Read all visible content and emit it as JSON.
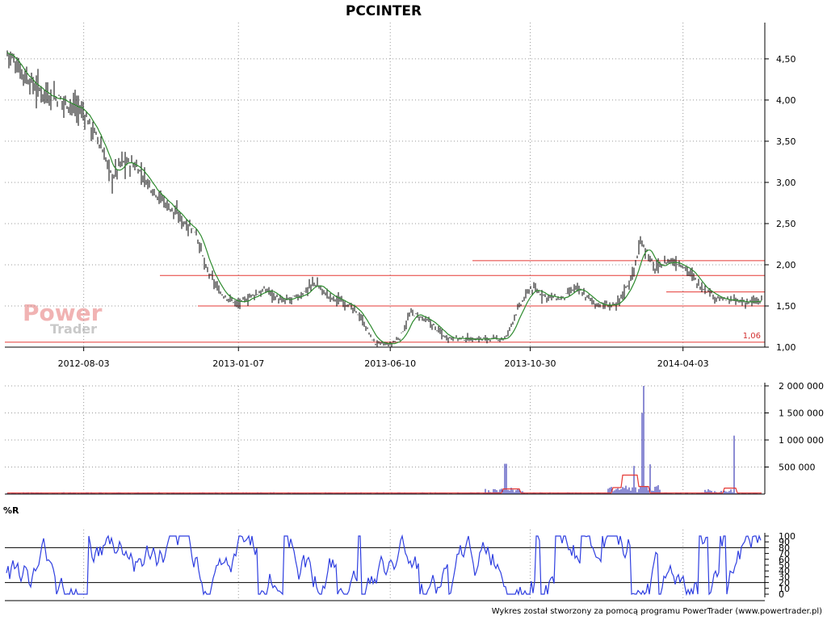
{
  "ticker": "PCCINTER",
  "watermark": {
    "line1": "Power",
    "line2": "Trader"
  },
  "footer": "Wykres został stworzony za pomocą programu PowerTrader (www.powertrader.pl)",
  "chart_data": [
    {
      "type": "line",
      "title": "PCCINTER",
      "series_kind": "ohlc-bars with moving average",
      "x_tick_labels": [
        "2012-08-03",
        "2013-01-07",
        "2013-06-10",
        "2013-10-30",
        "2014-04-03"
      ],
      "y_tick_labels": [
        "1,00",
        "1,50",
        "2,00",
        "2,50",
        "3,00",
        "3,50",
        "4,00",
        "4,50"
      ],
      "ylim": [
        1.0,
        4.95
      ],
      "price_close_approx": [
        [
          "2012-05-15",
          4.62
        ],
        [
          "2012-06-01",
          4.35
        ],
        [
          "2012-06-15",
          4.15
        ],
        [
          "2012-07-01",
          4.05
        ],
        [
          "2012-07-20",
          3.95
        ],
        [
          "2012-08-03",
          3.85
        ],
        [
          "2012-08-20",
          3.45
        ],
        [
          "2012-09-01",
          3.05
        ],
        [
          "2012-09-10",
          3.25
        ],
        [
          "2012-09-25",
          3.2
        ],
        [
          "2012-10-10",
          2.95
        ],
        [
          "2012-10-25",
          2.75
        ],
        [
          "2012-11-10",
          2.55
        ],
        [
          "2012-11-25",
          2.4
        ],
        [
          "2012-12-05",
          1.95
        ],
        [
          "2012-12-20",
          1.65
        ],
        [
          "2013-01-07",
          1.52
        ],
        [
          "2013-01-20",
          1.62
        ],
        [
          "2013-02-05",
          1.7
        ],
        [
          "2013-02-20",
          1.55
        ],
        [
          "2013-03-10",
          1.62
        ],
        [
          "2013-03-25",
          1.78
        ],
        [
          "2013-04-10",
          1.6
        ],
        [
          "2013-04-25",
          1.55
        ],
        [
          "2013-05-10",
          1.38
        ],
        [
          "2013-05-25",
          1.05
        ],
        [
          "2013-06-10",
          1.03
        ],
        [
          "2013-06-20",
          1.12
        ],
        [
          "2013-07-01",
          1.42
        ],
        [
          "2013-07-20",
          1.3
        ],
        [
          "2013-08-05",
          1.12
        ],
        [
          "2013-08-25",
          1.1
        ],
        [
          "2013-09-15",
          1.1
        ],
        [
          "2013-10-05",
          1.1
        ],
        [
          "2013-10-15",
          1.4
        ],
        [
          "2013-10-30",
          1.72
        ],
        [
          "2013-11-15",
          1.62
        ],
        [
          "2013-12-01",
          1.58
        ],
        [
          "2013-12-15",
          1.72
        ],
        [
          "2014-01-05",
          1.52
        ],
        [
          "2014-01-25",
          1.5
        ],
        [
          "2014-02-10",
          1.85
        ],
        [
          "2014-02-20",
          2.3
        ],
        [
          "2014-03-05",
          1.95
        ],
        [
          "2014-03-20",
          2.05
        ],
        [
          "2014-04-03",
          2.0
        ],
        [
          "2014-04-20",
          1.75
        ],
        [
          "2014-05-10",
          1.58
        ],
        [
          "2014-06-01",
          1.55
        ],
        [
          "2014-06-20",
          1.55
        ]
      ],
      "support_resistance_levels": [
        {
          "value": 1.06,
          "label": "1,06"
        },
        {
          "value": 1.5
        },
        {
          "value": 1.87
        },
        {
          "value": 2.05
        },
        {
          "value": 1.67
        }
      ],
      "grid": true
    },
    {
      "type": "bar",
      "title": "volume",
      "y_tick_labels": [
        "500 000",
        "1 000 000",
        "1 500 000",
        "2 000 000"
      ],
      "ylim": [
        0,
        2000000
      ],
      "volume_spikes_approx": [
        [
          "2013-10-05",
          560000
        ],
        [
          "2014-02-12",
          520000
        ],
        [
          "2014-02-20",
          1500000
        ],
        [
          "2014-02-22",
          2000000
        ],
        [
          "2014-03-01",
          550000
        ],
        [
          "2014-05-25",
          1080000
        ]
      ],
      "average_series_color": "#e53935",
      "bar_color": "#1a1aa8"
    },
    {
      "type": "line",
      "title": "%R",
      "y_tick_labels": [
        "0",
        "10",
        "20",
        "30",
        "40",
        "50",
        "60",
        "70",
        "80",
        "90",
        "100"
      ],
      "ylim": [
        0,
        100
      ],
      "reference_lines": [
        20,
        80
      ],
      "series_color": "#2f3fe0"
    }
  ],
  "colors": {
    "price_bars": "#000000",
    "ma_line": "#2e8b2e",
    "levels": "#e53935",
    "volume": "#1a1aa8",
    "williams": "#2f3fe0"
  }
}
